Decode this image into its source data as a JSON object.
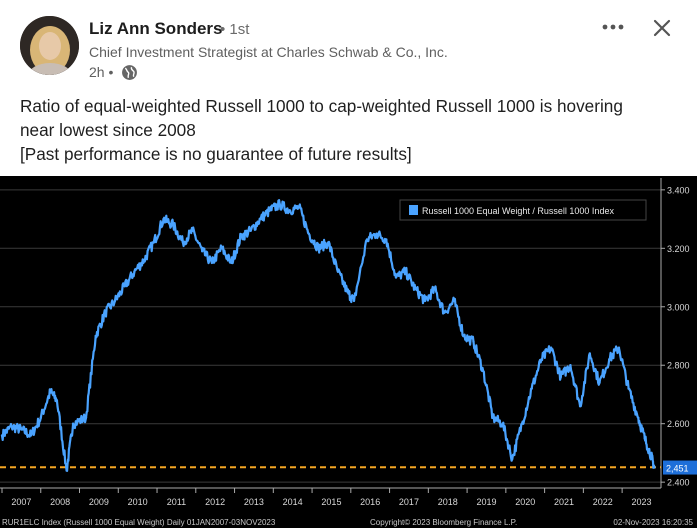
{
  "author": {
    "name": "Liz Ann Sonders",
    "degree": "• 1st",
    "headline": "Chief Investment Strategist at Charles Schwab & Co., Inc.",
    "time": "2h •"
  },
  "header_icons": {
    "more": "more-horizontal-icon",
    "close": "close-icon",
    "visibility": "globe-icon"
  },
  "post": {
    "lines": [
      "Ratio of equal-weighted Russell 1000 to cap-weighted Russell 1000 is hovering",
      "near lowest since 2008",
      "[Past performance is no guarantee of future results]"
    ]
  },
  "chart_footer": {
    "left": "RUR1ELC Index (Russell 1000 Equal Weight)  Daily 01JAN2007-03NOV2023",
    "center": "Copyright© 2023 Bloomberg Finance L.P.",
    "right": "02-Nov-2023 16:20:35"
  },
  "colors": {
    "line": "#4aa3ff",
    "reference": "#f5a623",
    "background": "#000000",
    "axis_text": "#d8d8d8"
  },
  "chart_data": {
    "type": "line",
    "title": "",
    "series": [
      {
        "name": "Russell 1000 Equal Weight / Russell 1000 Index",
        "x": [
          "2007-01",
          "2007-04",
          "2007-07",
          "2007-10",
          "2008-01",
          "2008-04",
          "2008-06",
          "2008-09",
          "2008-11",
          "2009-03",
          "2009-06",
          "2009-09",
          "2009-12",
          "2010-03",
          "2010-06",
          "2010-09",
          "2010-12",
          "2011-03",
          "2011-06",
          "2011-09",
          "2011-12",
          "2012-03",
          "2012-06",
          "2012-09",
          "2012-12",
          "2013-03",
          "2013-06",
          "2013-09",
          "2013-12",
          "2014-03",
          "2014-06",
          "2014-09",
          "2014-12",
          "2015-03",
          "2015-06",
          "2015-09",
          "2015-12",
          "2016-02",
          "2016-06",
          "2016-09",
          "2016-12",
          "2017-03",
          "2017-06",
          "2017-09",
          "2017-12",
          "2018-03",
          "2018-06",
          "2018-09",
          "2018-12",
          "2019-03",
          "2019-06",
          "2019-09",
          "2019-12",
          "2020-03",
          "2020-06",
          "2020-09",
          "2020-12",
          "2021-03",
          "2021-06",
          "2021-09",
          "2021-12",
          "2022-03",
          "2022-06",
          "2022-09",
          "2022-12",
          "2023-03",
          "2023-06",
          "2023-08",
          "2023-10",
          "2023-11"
        ],
        "values": [
          2.56,
          2.59,
          2.58,
          2.56,
          2.62,
          2.71,
          2.68,
          2.44,
          2.6,
          2.62,
          2.9,
          2.98,
          3.02,
          3.07,
          3.12,
          3.16,
          3.22,
          3.3,
          3.28,
          3.22,
          3.26,
          3.19,
          3.15,
          3.2,
          3.15,
          3.24,
          3.26,
          3.3,
          3.33,
          3.35,
          3.33,
          3.34,
          3.25,
          3.2,
          3.22,
          3.12,
          3.05,
          3.02,
          3.23,
          3.25,
          3.23,
          3.1,
          3.12,
          3.06,
          3.02,
          3.06,
          2.98,
          3.02,
          2.9,
          2.88,
          2.78,
          2.62,
          2.6,
          2.48,
          2.6,
          2.72,
          2.82,
          2.86,
          2.76,
          2.8,
          2.66,
          2.84,
          2.74,
          2.82,
          2.86,
          2.72,
          2.62,
          2.55,
          2.49,
          2.45
        ]
      }
    ],
    "current_value_label": "2,451",
    "reference_line": 2.451,
    "ylim": [
      2.38,
      3.42
    ],
    "y_ticks": [
      2.4,
      2.6,
      2.8,
      3.0,
      3.2,
      3.4
    ],
    "y_tick_labels": [
      "2.400",
      "2.600",
      "2.800",
      "3.000",
      "3.200",
      "3.400"
    ],
    "x_tick_labels": [
      "2007",
      "2008",
      "2009",
      "2010",
      "2011",
      "2012",
      "2013",
      "2014",
      "2015",
      "2016",
      "2017",
      "2018",
      "2019",
      "2020",
      "2021",
      "2022",
      "2023"
    ],
    "grid": true,
    "legend_position": "top-right",
    "xlabel": "",
    "ylabel": ""
  }
}
